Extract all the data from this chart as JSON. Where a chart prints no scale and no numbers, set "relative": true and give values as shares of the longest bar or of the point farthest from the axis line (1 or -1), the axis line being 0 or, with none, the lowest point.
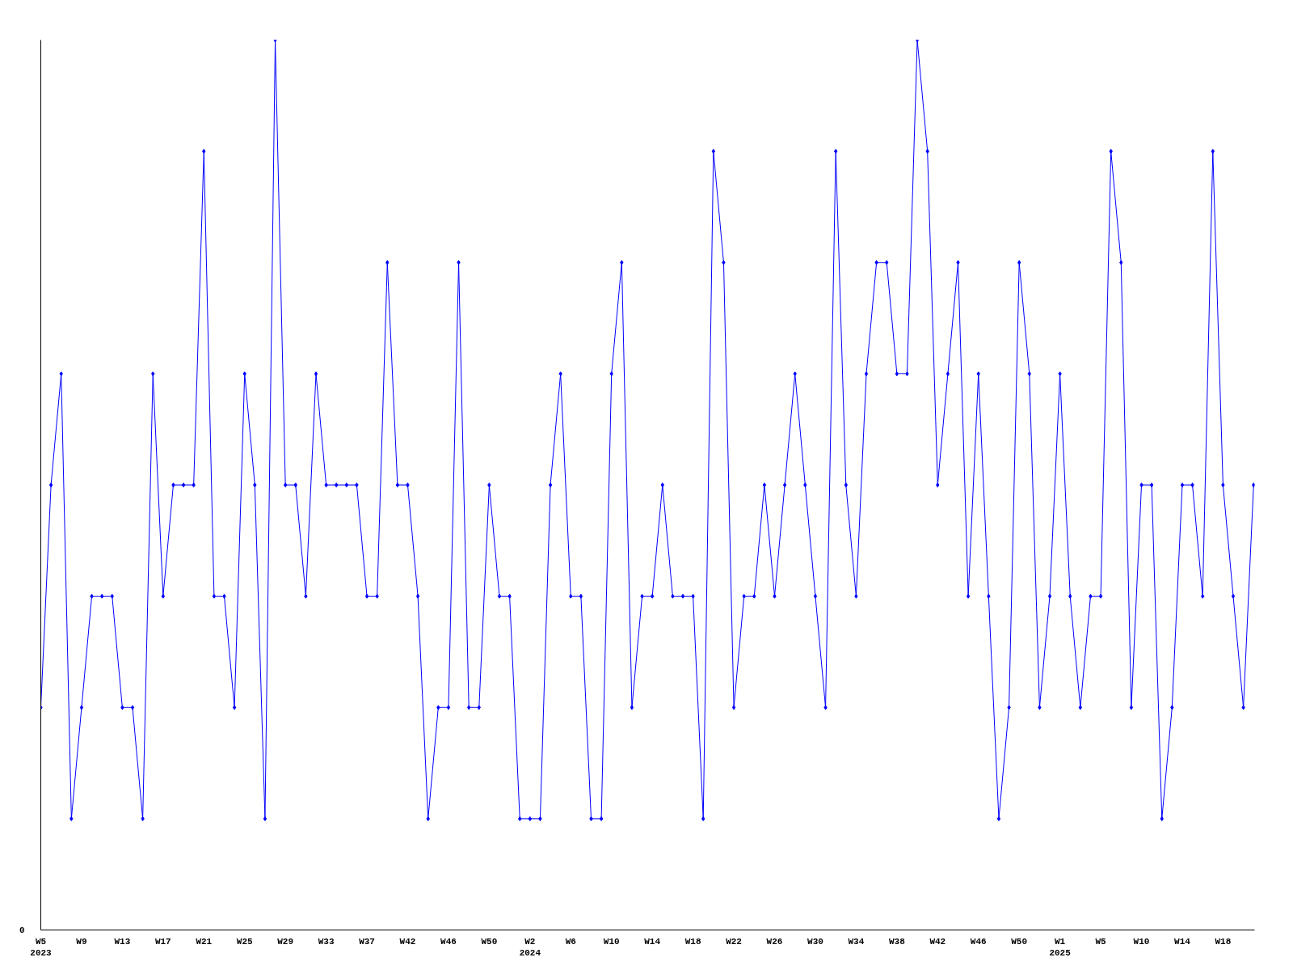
{
  "chart_data": {
    "type": "line",
    "relative": true,
    "marker": "diamond",
    "line_style": "solid",
    "annotations": [
      "0"
    ],
    "categories": [
      "W5\n2023",
      null,
      null,
      null,
      "W9",
      null,
      null,
      null,
      "W13",
      null,
      null,
      null,
      "W17",
      null,
      null,
      null,
      "W21",
      null,
      null,
      null,
      "W25",
      null,
      null,
      null,
      "W29",
      null,
      null,
      null,
      "W33",
      null,
      null,
      null,
      "W37",
      null,
      null,
      null,
      "W42",
      null,
      null,
      null,
      "W46",
      null,
      null,
      null,
      "W50",
      null,
      null,
      null,
      "W2\n2024",
      null,
      null,
      null,
      "W6",
      null,
      null,
      null,
      "W10",
      null,
      null,
      null,
      "W14",
      null,
      null,
      null,
      "W18",
      null,
      null,
      null,
      "W22",
      null,
      null,
      null,
      "W26",
      null,
      null,
      null,
      "W30",
      null,
      null,
      null,
      "W34",
      null,
      null,
      null,
      "W38",
      null,
      null,
      null,
      "W42",
      null,
      null,
      null,
      "W46",
      null,
      null,
      null,
      "W50",
      null,
      null,
      null,
      "W1\n2025",
      null,
      null,
      null,
      "W5",
      null,
      null,
      null,
      "W10",
      null,
      null,
      null,
      "W14",
      null,
      null,
      null,
      "W18",
      null,
      null,
      null
    ],
    "series": [
      {
        "color": "#0000ff",
        "values": [
          0.25,
          0.5,
          0.625,
          0.125,
          0.25,
          0.375,
          0.375,
          0.375,
          0.25,
          0.25,
          0.125,
          0.625,
          0.375,
          0.5,
          0.5,
          0.5,
          0.875,
          0.375,
          0.375,
          0.25,
          0.625,
          0.5,
          0.125,
          1,
          0.5,
          0.5,
          0.375,
          0.625,
          0.5,
          0.5,
          0.5,
          0.5,
          0.375,
          0.375,
          0.75,
          0.5,
          0.5,
          0.375,
          0.125,
          0.25,
          0.25,
          0.75,
          0.25,
          0.25,
          0.5,
          0.375,
          0.375,
          0.125,
          0.125,
          0.125,
          0.5,
          0.625,
          0.375,
          0.375,
          0.125,
          0.125,
          0.625,
          0.75,
          0.25,
          0.375,
          0.375,
          0.5,
          0.375,
          0.375,
          0.375,
          0.125,
          0.875,
          0.75,
          0.25,
          0.375,
          0.375,
          0.5,
          0.375,
          0.5,
          0.625,
          0.5,
          0.375,
          0.25,
          0.875,
          0.5,
          0.375,
          0.625,
          0.75,
          0.75,
          0.625,
          0.625,
          1,
          0.875,
          0.5,
          0.625,
          0.75,
          0.375,
          0.625,
          0.375,
          0.125,
          0.25,
          0.75,
          0.625,
          0.25,
          0.375,
          0.625,
          0.375,
          0.25,
          0.375,
          0.375,
          0.875,
          0.75,
          0.25,
          0.5,
          0.5,
          0.125,
          0.25,
          0.5,
          0.5,
          0.375,
          0.875,
          0.5,
          0.375,
          0.25,
          0.5
        ]
      }
    ]
  }
}
